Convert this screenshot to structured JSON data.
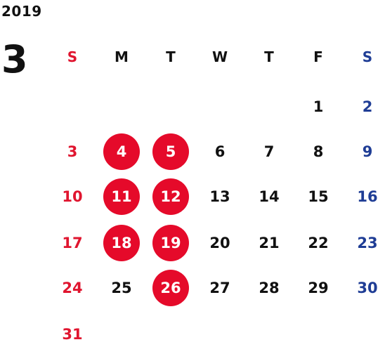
{
  "year": "2019",
  "month": "3",
  "weekdays": [
    "S",
    "M",
    "T",
    "W",
    "T",
    "F",
    "S"
  ],
  "weeks": [
    [
      "",
      "",
      "",
      "",
      "",
      "1",
      "2"
    ],
    [
      "3",
      "4",
      "5",
      "6",
      "7",
      "8",
      "9"
    ],
    [
      "10",
      "11",
      "12",
      "13",
      "14",
      "15",
      "16"
    ],
    [
      "17",
      "18",
      "19",
      "20",
      "21",
      "22",
      "23"
    ],
    [
      "24",
      "25",
      "26",
      "27",
      "28",
      "29",
      "30"
    ],
    [
      "31",
      "",
      "",
      "",
      "",
      "",
      ""
    ]
  ],
  "highlighted": [
    "4",
    "5",
    "11",
    "12",
    "18",
    "19",
    "26"
  ],
  "colors": {
    "sunday": "#e0152f",
    "saturday": "#1f3d95",
    "weekday": "#111111",
    "highlight_fill": "#e50a2a",
    "highlight_text": "#ffffff"
  }
}
